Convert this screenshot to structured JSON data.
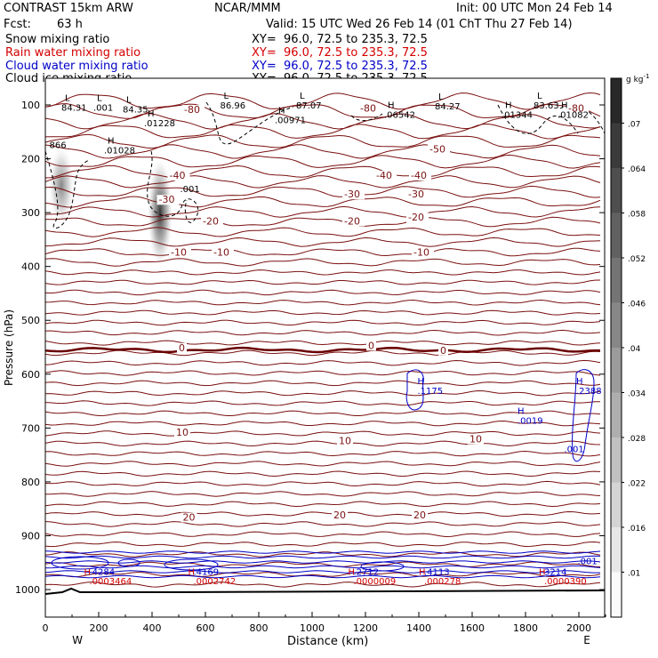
{
  "header": {
    "model": "CONTRAST 15km ARW",
    "org": "NCAR/MMM",
    "init": "Init: 00 UTC Mon 24 Feb 14",
    "fcst_label": "Fcst:",
    "fcst_value": "63 h",
    "valid": "Valid: 15 UTC Wed 26 Feb 14 (01 ChT Thu 27 Feb 14)"
  },
  "fields": [
    {
      "name": "Snow mixing ratio",
      "xy": "XY=  96.0, 72.5 to 235.3, 72.5",
      "color": "#000000"
    },
    {
      "name": "Rain water mixing ratio",
      "xy": "XY=  96.0, 72.5 to 235.3, 72.5",
      "color": "#d40000"
    },
    {
      "name": "Cloud water mixing ratio",
      "xy": "XY=  96.0, 72.5 to 235.3, 72.5",
      "color": "#0000c8"
    },
    {
      "name": "Cloud ice mixing ratio",
      "xy": "XY=  96.0, 72.5 to 235.3, 72.5",
      "color": "#000000"
    }
  ],
  "chart_data": {
    "type": "contour",
    "xlabel": "Distance (km)",
    "ylabel": "Pressure (hPa)",
    "xlim": [
      0,
      2100
    ],
    "ylim": [
      1050,
      50
    ],
    "x_ticks": [
      0,
      200,
      400,
      600,
      800,
      1000,
      1200,
      1400,
      1600,
      1800,
      2000
    ],
    "y_ticks": [
      100,
      200,
      300,
      400,
      500,
      600,
      700,
      800,
      900,
      1000
    ],
    "x_end_labels": {
      "west": "W",
      "east": "E"
    },
    "colorbar": {
      "unit": "g kg",
      "unit_exp": "-1",
      "levels": [
        ".01",
        ".016",
        ".022",
        ".028",
        ".034",
        ".04",
        ".046",
        ".052",
        ".058",
        ".064",
        ".07"
      ]
    },
    "temperature_contours": {
      "interval_C": 5,
      "zero_line_hPa": 555,
      "labels": [
        {
          "t": "-80",
          "x": 520,
          "p": 115
        },
        {
          "t": "-80",
          "x": 1180,
          "p": 112
        },
        {
          "t": "-80",
          "x": 1960,
          "p": 112
        },
        {
          "t": "-50",
          "x": 1440,
          "p": 188
        },
        {
          "t": "-40",
          "x": 1240,
          "p": 237
        },
        {
          "t": "-40",
          "x": 1370,
          "p": 237
        },
        {
          "t": "-40",
          "x": 465,
          "p": 237
        },
        {
          "t": "-30",
          "x": 1120,
          "p": 272
        },
        {
          "t": "-30",
          "x": 1360,
          "p": 272
        },
        {
          "t": "-30",
          "x": 425,
          "p": 282
        },
        {
          "t": "-20",
          "x": 1120,
          "p": 322
        },
        {
          "t": "-20",
          "x": 1360,
          "p": 315
        },
        {
          "t": "-20",
          "x": 590,
          "p": 322
        },
        {
          "t": "-10",
          "x": 470,
          "p": 380
        },
        {
          "t": "-10",
          "x": 630,
          "p": 380
        },
        {
          "t": "-10",
          "x": 1380,
          "p": 380
        },
        {
          "t": "0",
          "x": 500,
          "p": 557
        },
        {
          "t": "0",
          "x": 1210,
          "p": 553
        },
        {
          "t": "0",
          "x": 1480,
          "p": 562
        },
        {
          "t": "10",
          "x": 490,
          "p": 714
        },
        {
          "t": "10",
          "x": 1100,
          "p": 730
        },
        {
          "t": "10",
          "x": 1590,
          "p": 727
        },
        {
          "t": "20",
          "x": 515,
          "p": 872
        },
        {
          "t": "20",
          "x": 1080,
          "p": 868
        },
        {
          "t": "20",
          "x": 1380,
          "p": 868
        }
      ]
    },
    "ice_extrema": [
      {
        "label": "L",
        "value": "84.31",
        "x": 60,
        "p": 111
      },
      {
        "label": "L",
        "value": ".001",
        "x": 180,
        "p": 111
      },
      {
        "label": "L",
        "value": "84.35",
        "x": 290,
        "p": 114
      },
      {
        "label": "H",
        "value": ".01228",
        "x": 370,
        "p": 140
      },
      {
        "label": "L",
        "value": "86.96",
        "x": 655,
        "p": 107
      },
      {
        "label": "H",
        "value": ".00971",
        "x": 860,
        "p": 134
      },
      {
        "label": "L",
        "value": "87.07",
        "x": 940,
        "p": 107
      },
      {
        "label": "H",
        "value": ".06542",
        "x": 1270,
        "p": 124
      },
      {
        "label": "L",
        "value": "84.27",
        "x": 1460,
        "p": 108
      },
      {
        "label": "H",
        "value": ".01344",
        "x": 1710,
        "p": 124
      },
      {
        "label": "L",
        "value": "83.63",
        "x": 1830,
        "p": 107
      },
      {
        "label": "H",
        "value": ".01082",
        "x": 1920,
        "p": 124
      },
      {
        "label": "",
        "value": "866",
        "x": 15,
        "p": 180
      },
      {
        "label": "H",
        "value": ".01028",
        "x": 220,
        "p": 190
      },
      {
        "label": "",
        "value": ".001",
        "x": 505,
        "p": 262
      }
    ],
    "cloud_water_extrema": [
      {
        "label": "H",
        "value": ".1175",
        "x": 1395,
        "p": 637
      },
      {
        "label": "H",
        "value": ".0019",
        "x": 1770,
        "p": 692
      },
      {
        "label": "H",
        "value": ".2388",
        "x": 1990,
        "p": 637
      },
      {
        "label": "",
        "value": ".001",
        "x": 1945,
        "p": 745
      },
      {
        "label": "",
        "value": ".001",
        "x": 1995,
        "p": 953
      },
      {
        "label": "H",
        "value": ".4284",
        "x": 165,
        "p": 973
      },
      {
        "label": "H",
        "value": ".4169",
        "x": 555,
        "p": 973
      },
      {
        "label": "H",
        "value": ".2712",
        "x": 1155,
        "p": 973
      },
      {
        "label": "H",
        "value": ".4113",
        "x": 1420,
        "p": 973
      },
      {
        "label": "H",
        "value": "3214",
        "x": 1870,
        "p": 973
      }
    ],
    "rain_extrema": [
      {
        "value": ".0003464",
        "x": 165,
        "p": 990
      },
      {
        "value": ".0002742",
        "x": 555,
        "p": 990
      },
      {
        "value": ".0000009",
        "x": 1155,
        "p": 990
      },
      {
        "value": ".000278",
        "x": 1420,
        "p": 990
      },
      {
        "value": ".0000390",
        "x": 1870,
        "p": 990
      }
    ],
    "snow_maxima": [
      {
        "x": 60,
        "p": 250,
        "intensity": 0.6
      },
      {
        "x": 430,
        "p": 300,
        "intensity": 1.0
      }
    ]
  }
}
